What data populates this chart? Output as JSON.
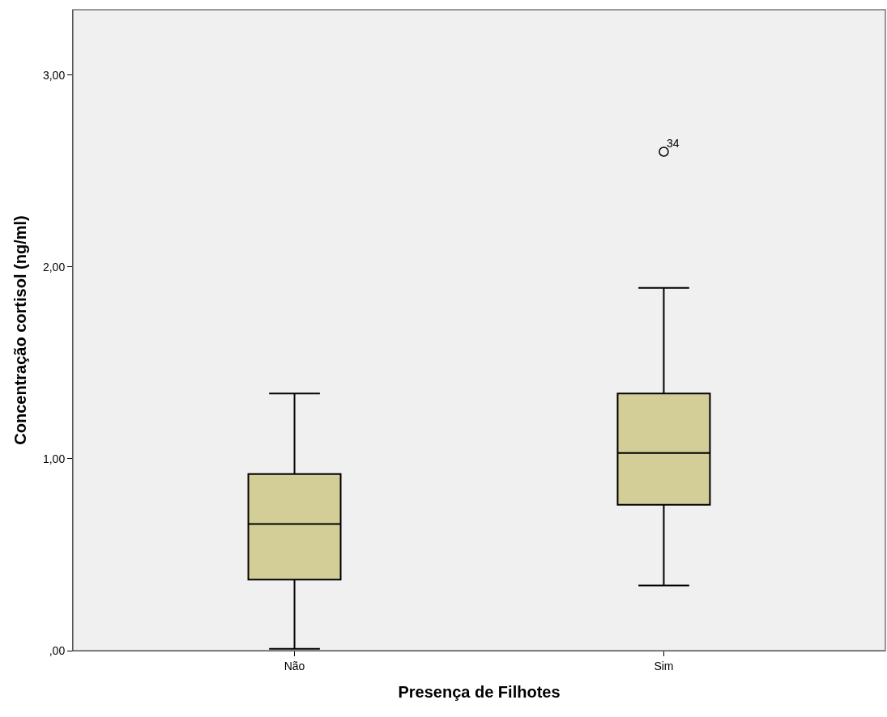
{
  "chart_data": {
    "type": "box",
    "xlabel": "Presença de Filhotes",
    "ylabel": "Concentração cortisol (ng/ml)",
    "categories": [
      "Não",
      "Sim"
    ],
    "boxes": [
      {
        "low": 0.01,
        "q1": 0.37,
        "median": 0.66,
        "q3": 0.92,
        "high": 1.34
      },
      {
        "low": 0.34,
        "q1": 0.76,
        "median": 1.03,
        "q3": 1.34,
        "high": 1.89,
        "outliers": [
          2.6
        ]
      }
    ],
    "color": "#d3ce97",
    "ylim": [
      0,
      3.34
    ],
    "yticks": [
      {
        "value": 0,
        "label": ",00"
      },
      {
        "value": 1,
        "label": "1,00"
      },
      {
        "value": 2,
        "label": "2,00"
      },
      {
        "value": 3,
        "label": "3,00"
      }
    ],
    "annotations": [
      "34"
    ],
    "grid": false
  }
}
